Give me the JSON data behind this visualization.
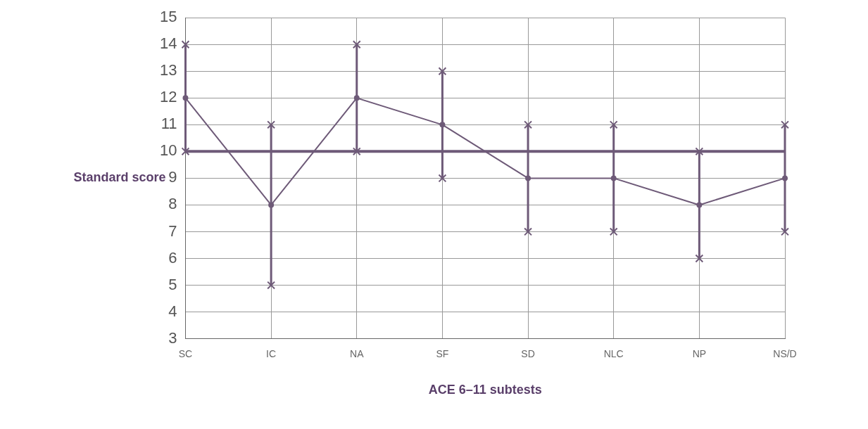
{
  "chart_data": {
    "type": "line",
    "xlabel": "ACE 6–11 subtests",
    "ylabel": "Standard score",
    "categories": [
      "SC",
      "IC",
      "NA",
      "SF",
      "SD",
      "NLC",
      "NP",
      "NS/D"
    ],
    "series": [
      {
        "color": "#6e5a78",
        "values": [
          12,
          8,
          12,
          11,
          9,
          9,
          8,
          9
        ]
      },
      {
        "type": "scatter",
        "marker": "cross",
        "color": "#6e5a78",
        "x": [
          "SC",
          "IC",
          "NA",
          "SF",
          "SD",
          "NLC",
          "NP",
          "NS/D"
        ],
        "values": [
          14,
          11,
          14,
          13,
          11,
          11,
          10,
          11
        ]
      },
      {
        "type": "scatter",
        "marker": "cross",
        "color": "#6e5a78",
        "x": [
          "SC",
          "IC",
          "NA",
          "SF",
          "SD",
          "NLC",
          "NP",
          "NS/D"
        ],
        "values": [
          10,
          5,
          10,
          9,
          7,
          7,
          6,
          7
        ]
      }
    ],
    "ylim": [
      3,
      15
    ],
    "yticks": [
      3,
      4,
      5,
      6,
      7,
      8,
      9,
      10,
      11,
      12,
      13,
      14,
      15
    ],
    "ref_lines": [
      {
        "axis": "y",
        "value": 10,
        "color": "#6e5a78"
      }
    ],
    "grid": true,
    "legend": false,
    "marker": "circle",
    "line_style": "solid"
  }
}
